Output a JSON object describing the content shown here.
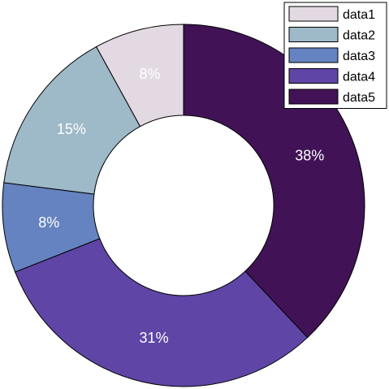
{
  "chart_data": {
    "type": "pie",
    "style": "donut",
    "series": [
      {
        "name": "data1",
        "value": 8,
        "label": "8%",
        "color": "#e2d9e2"
      },
      {
        "name": "data2",
        "value": 15,
        "label": "15%",
        "color": "#9eb9c8"
      },
      {
        "name": "data3",
        "value": 8,
        "label": "8%",
        "color": "#6583c0"
      },
      {
        "name": "data4",
        "value": 31,
        "label": "31%",
        "color": "#5f45a5"
      },
      {
        "name": "data5",
        "value": 38,
        "label": "38%",
        "color": "#411356"
      }
    ],
    "legend": "top-right",
    "start": "top",
    "direction": "counterclockwise"
  }
}
